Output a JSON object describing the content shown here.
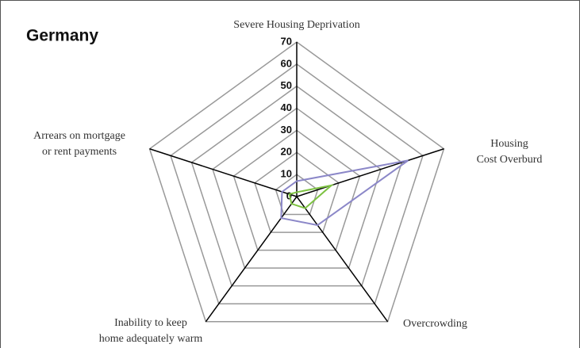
{
  "chart_data": {
    "type": "radar",
    "title": "Germany",
    "categories": [
      [
        "Severe Housing Deprivation"
      ],
      [
        "Housing",
        "Cost Overburd"
      ],
      [
        "Overcrowding"
      ],
      [
        "Inability to keep",
        "home adequately warm"
      ],
      [
        "Arrears on mortgage",
        "or rent payments"
      ]
    ],
    "series": [
      {
        "color": "#8b87c8",
        "values": [
          7,
          53,
          16,
          12,
          7
        ]
      },
      {
        "color": "#7dc242",
        "values": [
          2,
          16.5,
          6.5,
          4,
          3.5
        ]
      }
    ],
    "ylim": [
      0,
      70
    ],
    "yticks": [
      0,
      10,
      20,
      30,
      40,
      50,
      60,
      70
    ],
    "grid": true
  }
}
